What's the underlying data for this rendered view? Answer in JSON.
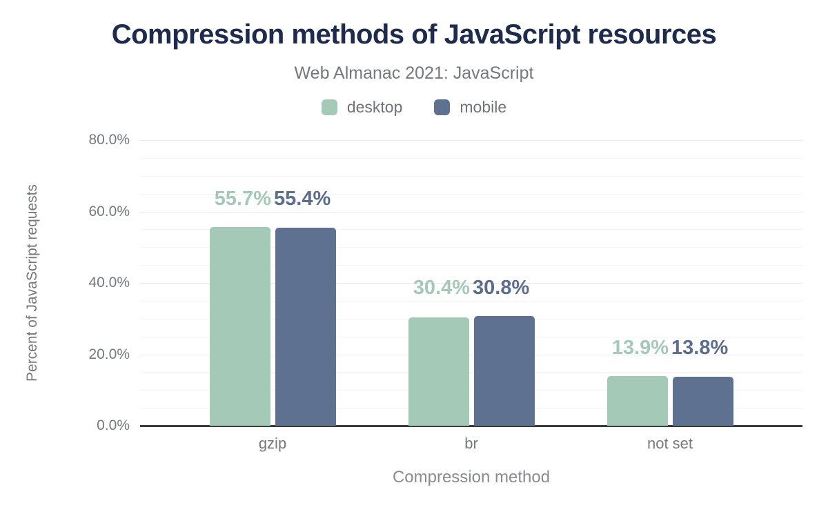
{
  "header": {
    "title": "Compression methods of JavaScript resources",
    "subtitle": "Web Almanac 2021: JavaScript"
  },
  "legend": {
    "items": [
      {
        "label": "desktop",
        "color": "#a4c9b6"
      },
      {
        "label": "mobile",
        "color": "#5e7190"
      }
    ]
  },
  "axes": {
    "y_title": "Percent of JavaScript requests",
    "x_title": "Compression method"
  },
  "chart_data": {
    "type": "bar",
    "title": "Compression methods of JavaScript resources",
    "subtitle": "Web Almanac 2021: JavaScript",
    "categories": [
      "gzip",
      "br",
      "not set"
    ],
    "series": [
      {
        "name": "desktop",
        "color": "#a4c9b6",
        "label_color": "#a4c9b6",
        "values": [
          55.7,
          30.4,
          13.9
        ],
        "data_labels": [
          "55.7%",
          "30.4%",
          "13.9%"
        ]
      },
      {
        "name": "mobile",
        "color": "#5e7190",
        "label_color": "#5b6c8d",
        "values": [
          55.4,
          30.8,
          13.8
        ],
        "data_labels": [
          "55.4%",
          "30.8%",
          "13.8%"
        ]
      }
    ],
    "xlabel": "Compression method",
    "ylabel": "Percent of JavaScript requests",
    "ylim": [
      0,
      80
    ],
    "yticks": [
      0,
      20,
      40,
      60,
      80
    ],
    "ytick_labels": [
      "0.0%",
      "20.0%",
      "40.0%",
      "60.0%",
      "80.0%"
    ],
    "minor_grid_step": 5,
    "grid": "horizontal gridlines every 5%, darker at 20% majors",
    "legend_position": "top"
  },
  "colors": {
    "background": "#ffffff",
    "title": "#1e2b4d",
    "subtitle": "#75787e",
    "axis_text": "#75787e",
    "axis_line": "#3a3a3a",
    "grid_minor": "#f3f3f4",
    "grid_major": "#e9e9eb",
    "desktop": "#a4c9b6",
    "mobile": "#5e7190"
  }
}
